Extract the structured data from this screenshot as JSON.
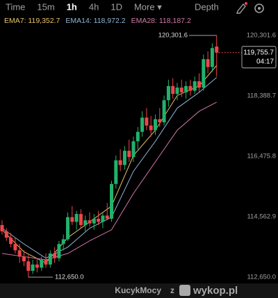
{
  "toolbar": {
    "tabs": [
      "Time",
      "15m",
      "1h",
      "4h",
      "1D",
      "More ▾"
    ],
    "active": "1h",
    "depth": "Depth"
  },
  "chart_data": {
    "type": "candlestick",
    "open": [
      114300,
      114100,
      113900,
      113700,
      113500,
      113300,
      113150,
      112850,
      113050,
      112950,
      113200,
      113050,
      113400,
      113250,
      113700,
      113850,
      114550,
      114400,
      114650,
      114300,
      114450,
      114350,
      114500,
      114400,
      114600,
      114500,
      115600,
      116350,
      116200,
      116650,
      116450,
      116950,
      117250,
      117700,
      117450,
      117300,
      117650,
      117550,
      118250,
      118700,
      118450,
      118650,
      118500,
      118700,
      118550,
      118850,
      118650,
      119550,
      119300,
      119950
    ],
    "high": [
      114450,
      114200,
      114050,
      113900,
      113700,
      113500,
      113350,
      113200,
      113250,
      113300,
      113400,
      113500,
      113600,
      113800,
      114000,
      114700,
      114900,
      114750,
      114800,
      114600,
      114700,
      114650,
      114750,
      114700,
      115000,
      115700,
      116500,
      116700,
      116800,
      117000,
      117100,
      117400,
      117900,
      118000,
      117750,
      117800,
      118000,
      118400,
      118900,
      118950,
      118800,
      118900,
      118850,
      118900,
      119000,
      119100,
      119700,
      119800,
      120050,
      120301.6
    ],
    "low": [
      114000,
      113800,
      113600,
      113400,
      113100,
      113000,
      112650,
      112750,
      112800,
      112850,
      112950,
      112950,
      113100,
      113150,
      113500,
      113800,
      114300,
      114150,
      114200,
      114100,
      114250,
      114150,
      114300,
      114200,
      114450,
      114400,
      115450,
      116000,
      116050,
      116300,
      116300,
      116700,
      117100,
      117300,
      117100,
      117150,
      117400,
      117450,
      118050,
      118300,
      118250,
      118350,
      118300,
      118400,
      118450,
      118500,
      118550,
      119100,
      119150,
      119000
    ],
    "close": [
      114100,
      113900,
      113700,
      113500,
      113300,
      113150,
      112850,
      113050,
      112950,
      113200,
      113050,
      113400,
      113250,
      113700,
      113850,
      114550,
      114400,
      114650,
      114300,
      114450,
      114350,
      114500,
      114400,
      114600,
      114500,
      115600,
      116350,
      116200,
      116650,
      116450,
      116950,
      117250,
      117700,
      117450,
      117300,
      117650,
      117550,
      118250,
      118700,
      118450,
      118650,
      118500,
      118700,
      118550,
      118850,
      118650,
      119550,
      119300,
      119900,
      119755.7
    ],
    "up_color": "#20b26c",
    "down_color": "#ef454a",
    "ema_x": [
      0,
      5,
      10,
      15,
      20,
      25,
      30,
      35,
      40,
      45,
      49
    ],
    "series": [
      {
        "name": "EMA7: 119,352.7",
        "color": "#e8c36a",
        "values": [
          114150,
          113450,
          113100,
          113900,
          114400,
          114900,
          116500,
          117300,
          118400,
          118700,
          119350
        ]
      },
      {
        "name": "EMA14: 118,972.2",
        "color": "#8fb4d6",
        "values": [
          114200,
          113700,
          113250,
          113600,
          114200,
          114550,
          116000,
          116950,
          118000,
          118500,
          118970
        ]
      },
      {
        "name": "EMA28: 118,187.2",
        "color": "#d07aa8",
        "values": [
          113400,
          113300,
          113200,
          113400,
          113800,
          114150,
          115300,
          116300,
          117300,
          117900,
          118190
        ]
      }
    ],
    "ylim": [
      112518,
      120543
    ],
    "yticks": [
      {
        "value": 120301.6,
        "label": "120,301.6"
      },
      {
        "value": 118388.7,
        "label": "118,388.7"
      },
      {
        "value": 116475.8,
        "label": "116,475.8"
      },
      {
        "value": 114562.9,
        "label": "114,562.9"
      },
      {
        "value": 112650.0,
        "label": "112,650.0"
      }
    ],
    "high_label": "120,301.6",
    "low_label": "112,650.0",
    "last_price": {
      "value": 119755.7,
      "label": "119,755.7",
      "countdown": "04:17"
    }
  },
  "footer": {
    "user": "KucykMocy",
    "joiner": "z",
    "site": "wykop.pl"
  }
}
